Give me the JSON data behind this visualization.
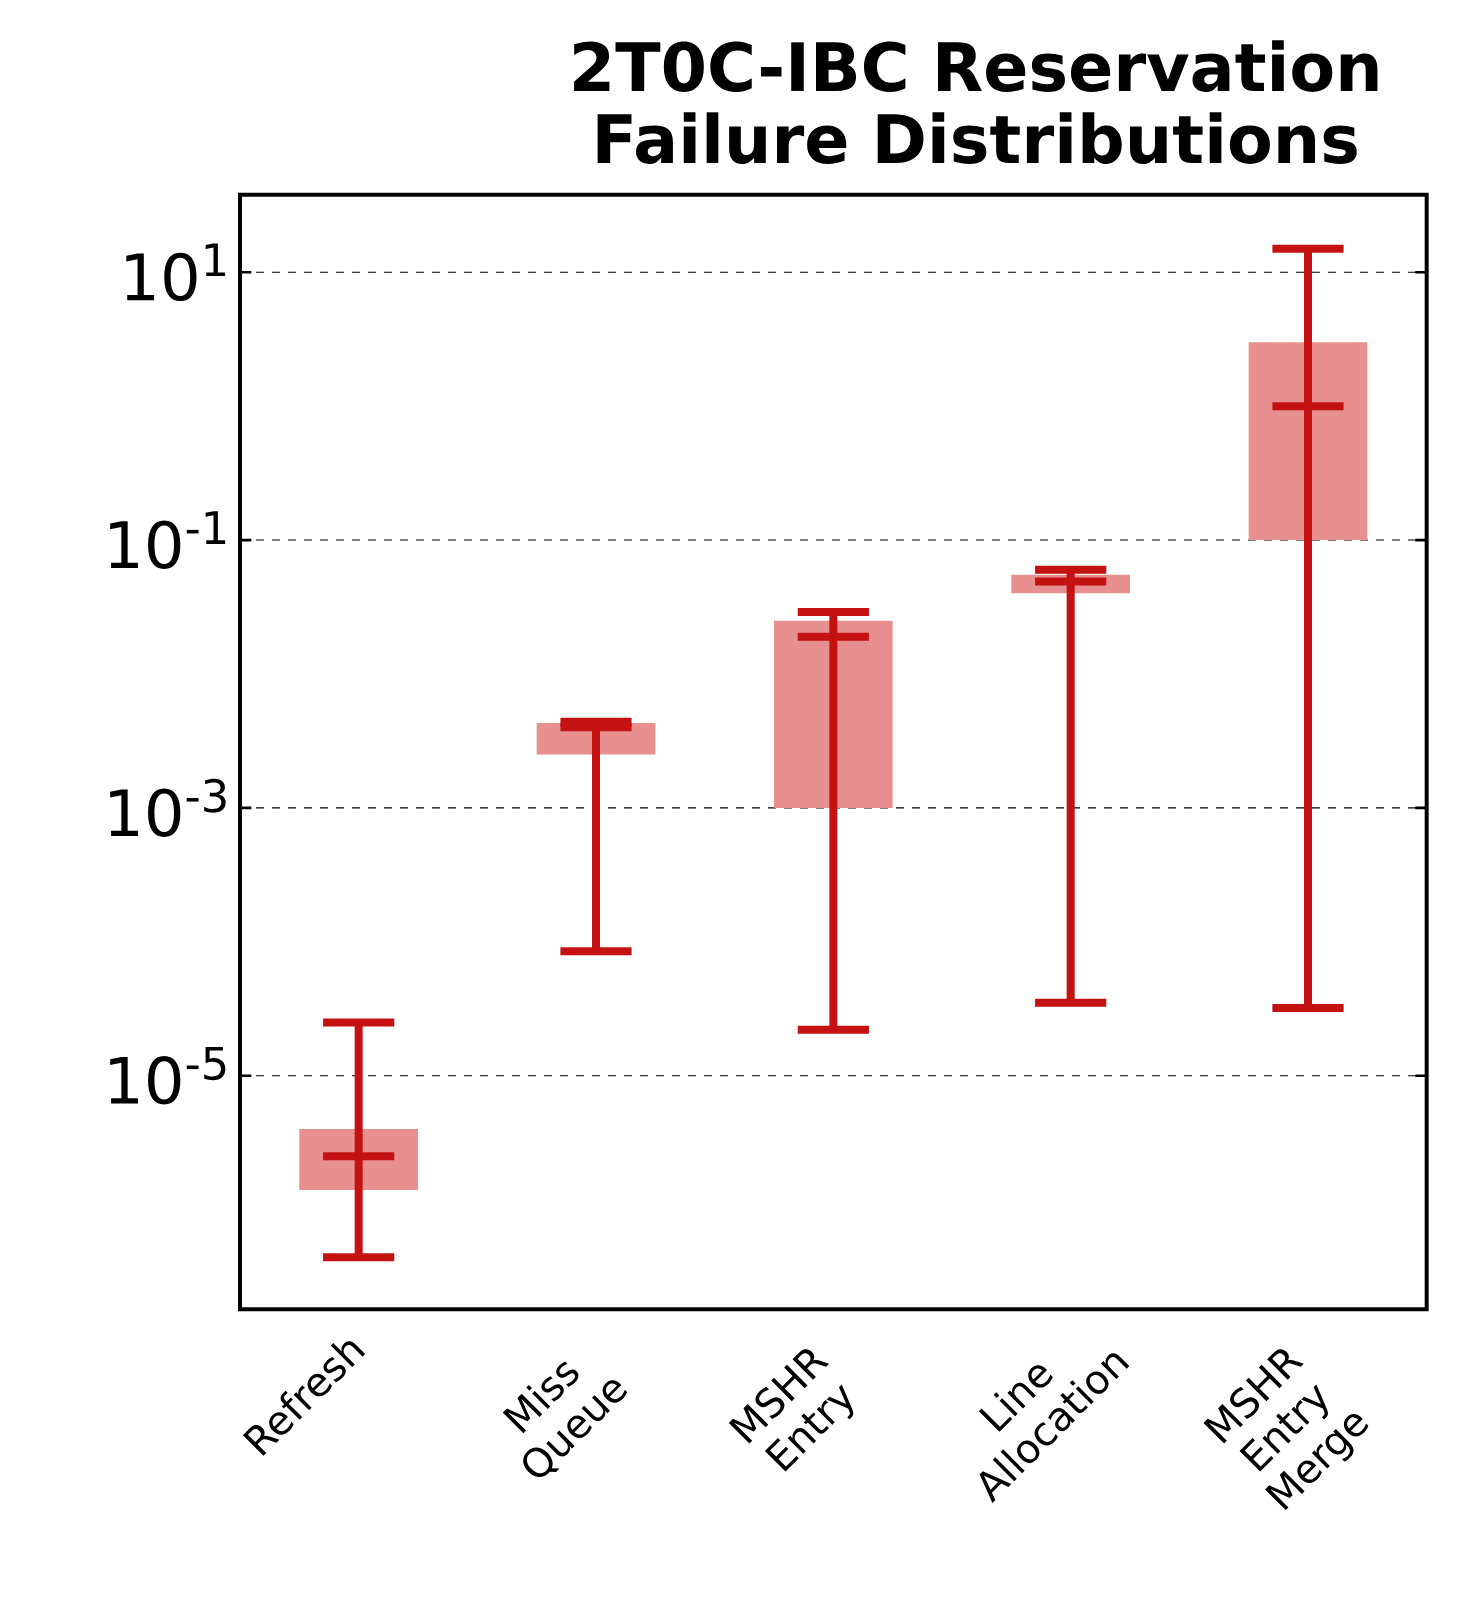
{
  "chart_data": {
    "type": "box",
    "title": "2T0C-IBC Reservation Failure Distributions",
    "categories": [
      "Refresh",
      "Miss Queue",
      "MSHR Entry",
      "Line Allocation",
      "MSHR Entry Merge"
    ],
    "series": [
      {
        "color": "#e89090",
        "boxes": [
          {
            "low": 4.4e-07,
            "q1": 1.4e-06,
            "median": 2.5e-06,
            "q3": 4e-06,
            "high": 2.5e-05
          },
          {
            "low": 8.5e-05,
            "q1": 0.0025,
            "median": 0.004,
            "q3": 0.0043,
            "high": 0.0044
          },
          {
            "low": 2.2e-05,
            "q1": 0.001,
            "median": 0.019,
            "q3": 0.025,
            "high": 0.029
          },
          {
            "low": 3.5e-05,
            "q1": 0.04,
            "median": 0.049,
            "q3": 0.055,
            "high": 0.06
          },
          {
            "low": 3.2e-05,
            "q1": 0.1,
            "median": 1,
            "q3": 3,
            "high": 15
          }
        ]
      }
    ],
    "log": true,
    "ylim": [
      1.8e-07,
      38
    ],
    "yticks": [
      {
        "value": 1e-05,
        "label": "10$^{-5}$"
      },
      {
        "value": 0.001,
        "label": "10$^{-3}$"
      },
      {
        "value": 0.1,
        "label": "10$^{-1}$"
      },
      {
        "value": 10,
        "label": "10$^{1}$"
      }
    ],
    "grid": "y"
  }
}
